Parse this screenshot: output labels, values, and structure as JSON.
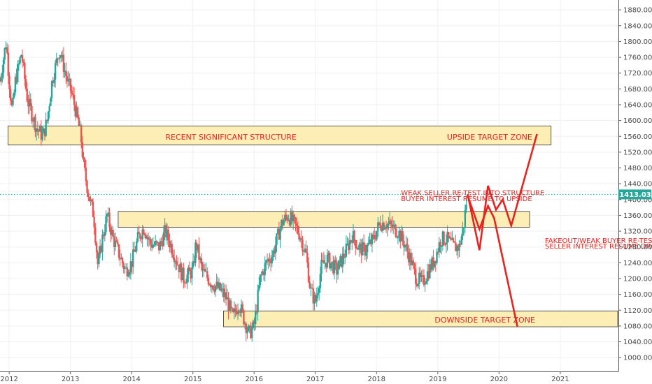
{
  "chart_data": {
    "type": "candlestick",
    "x_range": [
      2011.85,
      2021.95
    ],
    "y_range": [
      965,
      1905
    ],
    "grid": true,
    "x_ticks": [
      {
        "value": 2012,
        "label": "2012"
      },
      {
        "value": 2013,
        "label": "2013"
      },
      {
        "value": 2014,
        "label": "2014"
      },
      {
        "value": 2015,
        "label": "2015"
      },
      {
        "value": 2016,
        "label": "2016"
      },
      {
        "value": 2017,
        "label": "2017"
      },
      {
        "value": 2018,
        "label": "2018"
      },
      {
        "value": 2019,
        "label": "2019"
      },
      {
        "value": 2020,
        "label": "2020"
      },
      {
        "value": 2021,
        "label": "2021"
      }
    ],
    "y_ticks": [
      {
        "value": 1880,
        "label": "1880.00"
      },
      {
        "value": 1840,
        "label": "1840.00"
      },
      {
        "value": 1800,
        "label": "1800.00"
      },
      {
        "value": 1760,
        "label": "1760.00"
      },
      {
        "value": 1720,
        "label": "1720.00"
      },
      {
        "value": 1680,
        "label": "1680.00"
      },
      {
        "value": 1640,
        "label": "1640.00"
      },
      {
        "value": 1600,
        "label": "1600.00"
      },
      {
        "value": 1560,
        "label": "1560.00"
      },
      {
        "value": 1520,
        "label": "1520.00"
      },
      {
        "value": 1480,
        "label": "1480.00"
      },
      {
        "value": 1440,
        "label": "1440.00"
      },
      {
        "value": 1400,
        "label": "1400.00"
      },
      {
        "value": 1360,
        "label": "1360.00"
      },
      {
        "value": 1320,
        "label": "1320.00"
      },
      {
        "value": 1280,
        "label": "1280.00"
      },
      {
        "value": 1240,
        "label": "1240.00"
      },
      {
        "value": 1200,
        "label": "1200.00"
      },
      {
        "value": 1160,
        "label": "1160.00"
      },
      {
        "value": 1120,
        "label": "1120.00"
      },
      {
        "value": 1080,
        "label": "1080.00"
      },
      {
        "value": 1040,
        "label": "1040.00"
      },
      {
        "value": 1000,
        "label": "1000.00"
      }
    ],
    "current_price": {
      "value": 1413.03,
      "label": "1413.03"
    },
    "price_path": [
      [
        2011.85,
        1700
      ],
      [
        2011.95,
        1800
      ],
      [
        2012.0,
        1700
      ],
      [
        2012.05,
        1620
      ],
      [
        2012.1,
        1700
      ],
      [
        2012.2,
        1770
      ],
      [
        2012.3,
        1650
      ],
      [
        2012.45,
        1580
      ],
      [
        2012.55,
        1560
      ],
      [
        2012.62,
        1600
      ],
      [
        2012.7,
        1700
      ],
      [
        2012.82,
        1780
      ],
      [
        2012.95,
        1700
      ],
      [
        2013.0,
        1680
      ],
      [
        2013.05,
        1650
      ],
      [
        2013.12,
        1600
      ],
      [
        2013.17,
        1560
      ],
      [
        2013.22,
        1480
      ],
      [
        2013.3,
        1410
      ],
      [
        2013.38,
        1360
      ],
      [
        2013.45,
        1230
      ],
      [
        2013.52,
        1300
      ],
      [
        2013.6,
        1360
      ],
      [
        2013.7,
        1300
      ],
      [
        2013.8,
        1260
      ],
      [
        2013.9,
        1220
      ],
      [
        2014.0,
        1240
      ],
      [
        2014.1,
        1300
      ],
      [
        2014.2,
        1330
      ],
      [
        2014.3,
        1290
      ],
      [
        2014.45,
        1280
      ],
      [
        2014.55,
        1320
      ],
      [
        2014.7,
        1260
      ],
      [
        2014.85,
        1200
      ],
      [
        2015.0,
        1220
      ],
      [
        2015.05,
        1290
      ],
      [
        2015.15,
        1220
      ],
      [
        2015.3,
        1190
      ],
      [
        2015.45,
        1170
      ],
      [
        2015.55,
        1150
      ],
      [
        2015.65,
        1100
      ],
      [
        2015.75,
        1140
      ],
      [
        2015.85,
        1090
      ],
      [
        2015.92,
        1060
      ],
      [
        2016.0,
        1080
      ],
      [
        2016.1,
        1200
      ],
      [
        2016.2,
        1240
      ],
      [
        2016.3,
        1260
      ],
      [
        2016.45,
        1340
      ],
      [
        2016.55,
        1360
      ],
      [
        2016.65,
        1340
      ],
      [
        2016.75,
        1310
      ],
      [
        2016.85,
        1260
      ],
      [
        2016.92,
        1170
      ],
      [
        2017.0,
        1140
      ],
      [
        2017.1,
        1230
      ],
      [
        2017.2,
        1250
      ],
      [
        2017.35,
        1220
      ],
      [
        2017.5,
        1270
      ],
      [
        2017.6,
        1310
      ],
      [
        2017.7,
        1280
      ],
      [
        2017.8,
        1270
      ],
      [
        2017.95,
        1300
      ],
      [
        2018.05,
        1340
      ],
      [
        2018.15,
        1340
      ],
      [
        2018.25,
        1330
      ],
      [
        2018.35,
        1320
      ],
      [
        2018.45,
        1290
      ],
      [
        2018.55,
        1250
      ],
      [
        2018.65,
        1200
      ],
      [
        2018.75,
        1190
      ],
      [
        2018.85,
        1220
      ],
      [
        2018.95,
        1250
      ],
      [
        2019.05,
        1300
      ],
      [
        2019.15,
        1300
      ],
      [
        2019.25,
        1280
      ],
      [
        2019.35,
        1280
      ],
      [
        2019.42,
        1330
      ],
      [
        2019.48,
        1413
      ]
    ],
    "zones": [
      {
        "name": "recent-structure",
        "x0": 2011.98,
        "x1": 2020.85,
        "y0": 1538,
        "y1": 1586
      },
      {
        "name": "mid-structure",
        "x0": 2013.78,
        "x1": 2020.5,
        "y0": 1330,
        "y1": 1370
      },
      {
        "name": "downside-zone",
        "x0": 2015.5,
        "x1": 2021.95,
        "y0": 1078,
        "y1": 1118
      }
    ],
    "projections": [
      {
        "name": "upside-path",
        "points": [
          [
            2019.5,
            1404
          ],
          [
            2019.68,
            1272
          ],
          [
            2019.82,
            1435
          ],
          [
            2019.95,
            1374
          ],
          [
            2020.06,
            1400
          ],
          [
            2020.2,
            1334
          ],
          [
            2020.62,
            1566
          ]
        ]
      },
      {
        "name": "downside-path",
        "points": [
          [
            2019.48,
            1413
          ],
          [
            2019.68,
            1325
          ],
          [
            2019.82,
            1384
          ],
          [
            2019.92,
            1353
          ],
          [
            2020.3,
            1078
          ]
        ]
      }
    ],
    "annotations": [
      {
        "text": "RECENT SIGNIFICANT STRUCTURE",
        "x": 2014.55,
        "y": 1559,
        "style": "big"
      },
      {
        "text": "UPSIDE TARGET ZONE",
        "x": 2019.15,
        "y": 1559,
        "style": "big"
      },
      {
        "text": "WEAK SELLER RE-TEST INTO STRUCTURE",
        "x": 2018.4,
        "y": 1418,
        "style": "normal"
      },
      {
        "text": "BUYER INTEREST RESUME TO UPSIDE",
        "x": 2018.4,
        "y": 1403,
        "style": "normal"
      },
      {
        "text": "FAKEOUT/WEAK BUYER RE-TEST",
        "x": 2020.75,
        "y": 1297,
        "style": "normal"
      },
      {
        "text": "SELLER INTEREST RESUME DROP",
        "x": 2020.75,
        "y": 1283,
        "style": "normal"
      },
      {
        "text": "DOWNSIDE TARGET ZONE",
        "x": 2018.95,
        "y": 1096,
        "style": "big"
      }
    ],
    "colors": {
      "bull": "#26a69a",
      "bear": "#ef5350",
      "zone_fill": "#fdeeb6",
      "zone_stroke": "#333333",
      "projection": "#e8231f",
      "price_line": "#26a69a",
      "price_label_bg": "#26a69a",
      "annotation": "#e8231f",
      "grid": "#eef0f3"
    }
  }
}
